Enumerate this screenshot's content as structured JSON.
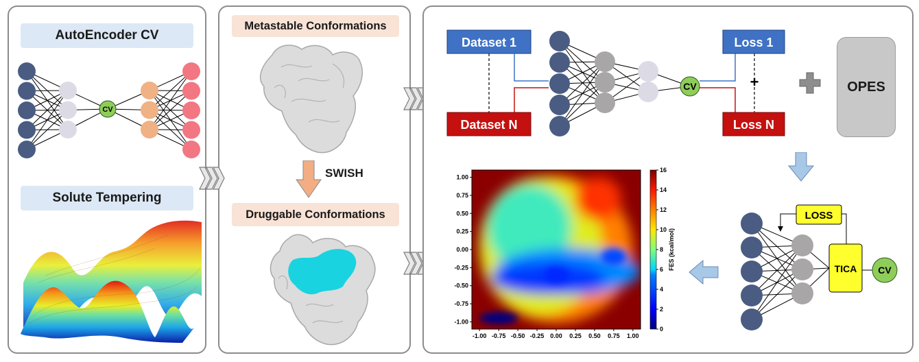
{
  "left_panel": {
    "autoencoder_title": "AutoEncoder CV",
    "ae_cv_label": "CV",
    "solute_title": "Solute Tempering"
  },
  "middle_panel": {
    "metastable_title": "Metastable Conformations",
    "swish_label": "SWISH",
    "druggable_title": "Druggable Conformations"
  },
  "right_panel": {
    "dataset_1": "Dataset 1",
    "dataset_n": "Dataset N",
    "loss_1": "Loss 1",
    "loss_n": "Loss N",
    "plus_symbol": "+",
    "cv_label": "CV",
    "opes_label": "OPES",
    "loss_box": "LOSS",
    "tica_label": "TICA",
    "tica_cv_label": "CV"
  },
  "colors": {
    "node_blue": "#4a5c82",
    "node_lavender": "#dcdbe5",
    "node_gray": "#a8a6a6",
    "node_peach": "#f0b184",
    "node_pink": "#f27782",
    "cv_green": "#8fcd5a",
    "dataset_blue": "#3f72c4",
    "dataset_red": "#c4100f",
    "yellow_box": "#ffff2e",
    "opes_gray": "#c8c8c8",
    "swish_arrow": "#f2ad84",
    "flow_arrow": "#a8c8e8"
  },
  "chart_data": {
    "type": "heatmap",
    "title": "",
    "xlabel": "",
    "ylabel": "",
    "xlim": [
      -1.1,
      1.1
    ],
    "ylim": [
      -1.1,
      1.1
    ],
    "x_ticks": [
      "-1.00",
      "-0.75",
      "-0.50",
      "-0.25",
      "0.00",
      "0.25",
      "0.50",
      "0.75",
      "1.00"
    ],
    "y_ticks": [
      "1.00",
      "0.75",
      "0.50",
      "0.25",
      "0.00",
      "-0.25",
      "-0.50",
      "-0.75",
      "-1.00"
    ],
    "colorbar_label": "FES (kcal/mol)",
    "colorbar_ticks": [
      "16",
      "14",
      "12",
      "10",
      "8",
      "6",
      "4",
      "2",
      "0"
    ],
    "colorbar_range": [
      0,
      16
    ],
    "colormap": "jet",
    "minima": [
      {
        "x": -0.75,
        "y": -0.95,
        "value": 0
      },
      {
        "x": 0.0,
        "y": -0.35,
        "value": 3
      },
      {
        "x": 0.75,
        "y": -0.1,
        "value": 4
      }
    ]
  }
}
